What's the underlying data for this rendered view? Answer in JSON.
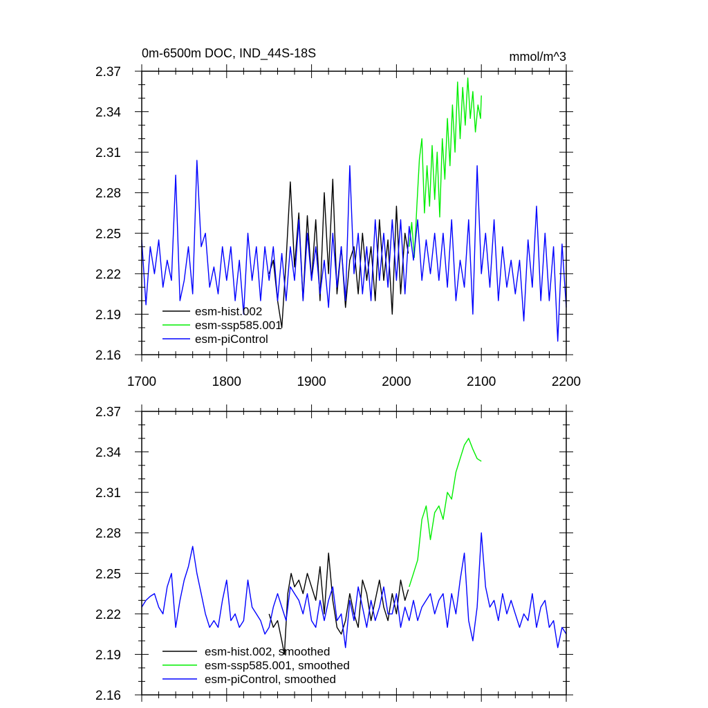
{
  "colors": {
    "hist": "#000000",
    "ssp": "#00ee00",
    "control": "#0000ff",
    "axis": "#000000",
    "background": "#ffffff"
  },
  "chart_data": [
    {
      "type": "line",
      "title": "0m-6500m DOC, IND_44S-18S",
      "units_label": "mmol/m^3",
      "xlim": [
        1700,
        2200
      ],
      "ylim": [
        2.16,
        2.37
      ],
      "x_ticks": [
        "1700",
        "1800",
        "1900",
        "2000",
        "2100",
        "2200"
      ],
      "y_ticks": [
        "2.37",
        "2.34",
        "2.31",
        "2.28",
        "2.25",
        "2.22",
        "2.19",
        "2.16"
      ],
      "x_tick_labels_shown": true,
      "grid": false,
      "legend_placement": "bottom-left",
      "series": [
        {
          "name": "esm-hist.002",
          "color_key": "hist",
          "x": [
            1850,
            1855,
            1860,
            1865,
            1870,
            1875,
            1880,
            1885,
            1890,
            1895,
            1900,
            1905,
            1910,
            1915,
            1920,
            1925,
            1930,
            1935,
            1940,
            1945,
            1950,
            1955,
            1960,
            1965,
            1970,
            1975,
            1980,
            1985,
            1990,
            1995,
            2000,
            2005,
            2010,
            2014
          ],
          "values": [
            2.22,
            2.23,
            2.2,
            2.18,
            2.23,
            2.288,
            2.225,
            2.265,
            2.2,
            2.263,
            2.215,
            2.26,
            2.2,
            2.28,
            2.22,
            2.29,
            2.205,
            2.24,
            2.195,
            2.23,
            2.24,
            2.205,
            2.25,
            2.215,
            2.24,
            2.2,
            2.26,
            2.215,
            2.245,
            2.19,
            2.27,
            2.205,
            2.25,
            2.235
          ]
        },
        {
          "name": "esm-ssp585.001",
          "color_key": "ssp",
          "x": [
            2015,
            2018,
            2021,
            2024,
            2027,
            2030,
            2033,
            2036,
            2039,
            2042,
            2045,
            2048,
            2051,
            2054,
            2057,
            2060,
            2063,
            2066,
            2069,
            2072,
            2075,
            2078,
            2081,
            2084,
            2087,
            2090,
            2093,
            2096,
            2099,
            2100
          ],
          "values": [
            2.24,
            2.258,
            2.232,
            2.27,
            2.305,
            2.32,
            2.265,
            2.3,
            2.27,
            2.315,
            2.275,
            2.31,
            2.262,
            2.32,
            2.29,
            2.335,
            2.3,
            2.345,
            2.31,
            2.362,
            2.32,
            2.358,
            2.33,
            2.365,
            2.335,
            2.355,
            2.325,
            2.345,
            2.335,
            2.352
          ]
        },
        {
          "name": "esm-piControl",
          "color_key": "control",
          "x": [
            1700,
            1705,
            1710,
            1715,
            1720,
            1725,
            1730,
            1735,
            1740,
            1745,
            1750,
            1755,
            1760,
            1765,
            1770,
            1775,
            1780,
            1785,
            1790,
            1795,
            1800,
            1805,
            1810,
            1815,
            1820,
            1825,
            1830,
            1835,
            1840,
            1845,
            1850,
            1855,
            1860,
            1865,
            1870,
            1875,
            1880,
            1885,
            1890,
            1895,
            1900,
            1905,
            1910,
            1915,
            1920,
            1925,
            1930,
            1935,
            1940,
            1945,
            1950,
            1955,
            1960,
            1965,
            1970,
            1975,
            1980,
            1985,
            1990,
            1995,
            2000,
            2005,
            2010,
            2015,
            2020,
            2025,
            2030,
            2035,
            2040,
            2045,
            2050,
            2055,
            2060,
            2065,
            2070,
            2075,
            2080,
            2085,
            2090,
            2095,
            2100,
            2105,
            2110,
            2115,
            2120,
            2125,
            2130,
            2135,
            2140,
            2145,
            2150,
            2155,
            2160,
            2165,
            2170,
            2175,
            2180,
            2185,
            2190,
            2195,
            2200
          ],
          "values": [
            2.245,
            2.197,
            2.24,
            2.22,
            2.245,
            2.21,
            2.23,
            2.215,
            2.293,
            2.2,
            2.215,
            2.24,
            2.205,
            2.304,
            2.24,
            2.25,
            2.21,
            2.225,
            2.205,
            2.24,
            2.215,
            2.24,
            2.2,
            2.23,
            2.19,
            2.25,
            2.215,
            2.24,
            2.2,
            2.24,
            2.215,
            2.24,
            2.2,
            2.235,
            2.2,
            2.24,
            2.215,
            2.26,
            2.2,
            2.25,
            2.215,
            2.24,
            2.205,
            2.23,
            2.195,
            2.25,
            2.21,
            2.24,
            2.2,
            2.3,
            2.22,
            2.25,
            2.205,
            2.24,
            2.2,
            2.26,
            2.215,
            2.25,
            2.21,
            2.26,
            2.215,
            2.26,
            2.205,
            2.255,
            2.23,
            2.26,
            2.215,
            2.245,
            2.22,
            2.25,
            2.215,
            2.25,
            2.21,
            2.26,
            2.2,
            2.23,
            2.21,
            2.26,
            2.19,
            2.3,
            2.22,
            2.25,
            2.21,
            2.26,
            2.2,
            2.24,
            2.21,
            2.23,
            2.205,
            2.23,
            2.185,
            2.245,
            2.21,
            2.27,
            2.2,
            2.25,
            2.2,
            2.24,
            2.17,
            2.242,
            2.195
          ]
        }
      ]
    },
    {
      "type": "line",
      "title": "",
      "units_label": "",
      "xlim": [
        1700,
        2200
      ],
      "ylim": [
        2.16,
        2.37
      ],
      "x_ticks": [
        "1700",
        "1800",
        "1900",
        "2000",
        "2100",
        "2200"
      ],
      "y_ticks": [
        "2.37",
        "2.34",
        "2.31",
        "2.28",
        "2.25",
        "2.22",
        "2.19",
        "2.16"
      ],
      "x_tick_labels_shown": false,
      "grid": false,
      "legend_placement": "bottom-left",
      "series": [
        {
          "name": "esm-hist.002, smoothed",
          "color_key": "hist",
          "x": [
            1850,
            1855,
            1860,
            1865,
            1868,
            1872,
            1876,
            1880,
            1885,
            1890,
            1895,
            1900,
            1905,
            1910,
            1915,
            1920,
            1925,
            1930,
            1935,
            1940,
            1945,
            1950,
            1955,
            1960,
            1965,
            1970,
            1975,
            1980,
            1985,
            1990,
            1995,
            2000,
            2005,
            2010,
            2014
          ],
          "values": [
            2.22,
            2.21,
            2.215,
            2.2,
            2.19,
            2.235,
            2.25,
            2.24,
            2.245,
            2.235,
            2.25,
            2.24,
            2.23,
            2.255,
            2.22,
            2.265,
            2.23,
            2.21,
            2.205,
            2.215,
            2.235,
            2.22,
            2.21,
            2.245,
            2.235,
            2.215,
            2.23,
            2.245,
            2.225,
            2.215,
            2.235,
            2.22,
            2.245,
            2.23,
            2.238
          ]
        },
        {
          "name": "esm-ssp585.001, smoothed",
          "color_key": "ssp",
          "x": [
            2015,
            2020,
            2025,
            2030,
            2035,
            2040,
            2045,
            2050,
            2055,
            2060,
            2065,
            2070,
            2075,
            2080,
            2085,
            2090,
            2095,
            2100
          ],
          "values": [
            2.24,
            2.25,
            2.26,
            2.29,
            2.3,
            2.275,
            2.295,
            2.3,
            2.29,
            2.31,
            2.305,
            2.325,
            2.335,
            2.345,
            2.35,
            2.342,
            2.335,
            2.333
          ]
        },
        {
          "name": "esm-piControl, smoothed",
          "color_key": "control",
          "x": [
            1700,
            1705,
            1710,
            1715,
            1720,
            1725,
            1730,
            1735,
            1740,
            1745,
            1750,
            1755,
            1760,
            1765,
            1770,
            1775,
            1780,
            1785,
            1790,
            1795,
            1800,
            1805,
            1810,
            1815,
            1820,
            1825,
            1830,
            1835,
            1840,
            1845,
            1850,
            1855,
            1860,
            1865,
            1870,
            1875,
            1880,
            1885,
            1890,
            1895,
            1900,
            1905,
            1910,
            1915,
            1920,
            1925,
            1930,
            1935,
            1940,
            1945,
            1950,
            1955,
            1960,
            1965,
            1970,
            1975,
            1980,
            1985,
            1990,
            1995,
            2000,
            2005,
            2010,
            2015,
            2020,
            2025,
            2030,
            2035,
            2040,
            2045,
            2050,
            2055,
            2060,
            2065,
            2070,
            2075,
            2080,
            2085,
            2090,
            2095,
            2100,
            2105,
            2110,
            2115,
            2120,
            2125,
            2130,
            2135,
            2140,
            2145,
            2150,
            2155,
            2160,
            2165,
            2170,
            2175,
            2180,
            2185,
            2190,
            2195,
            2200
          ],
          "values": [
            2.225,
            2.23,
            2.233,
            2.235,
            2.225,
            2.22,
            2.24,
            2.25,
            2.21,
            2.23,
            2.245,
            2.255,
            2.27,
            2.25,
            2.235,
            2.22,
            2.21,
            2.215,
            2.21,
            2.23,
            2.245,
            2.215,
            2.22,
            2.21,
            2.215,
            2.245,
            2.225,
            2.22,
            2.215,
            2.205,
            2.21,
            2.225,
            2.235,
            2.225,
            2.215,
            2.24,
            2.235,
            2.23,
            2.22,
            2.235,
            2.215,
            2.21,
            2.23,
            2.215,
            2.23,
            2.24,
            2.215,
            2.22,
            2.195,
            2.23,
            2.215,
            2.24,
            2.225,
            2.21,
            2.23,
            2.215,
            2.225,
            2.24,
            2.22,
            2.22,
            2.235,
            2.21,
            2.225,
            2.215,
            2.23,
            2.215,
            2.225,
            2.23,
            2.235,
            2.22,
            2.23,
            2.235,
            2.21,
            2.235,
            2.22,
            2.245,
            2.265,
            2.215,
            2.2,
            2.225,
            2.28,
            2.24,
            2.225,
            2.23,
            2.215,
            2.235,
            2.22,
            2.23,
            2.22,
            2.21,
            2.22,
            2.215,
            2.235,
            2.21,
            2.225,
            2.23,
            2.21,
            2.215,
            2.195,
            2.21,
            2.205
          ]
        }
      ]
    }
  ]
}
